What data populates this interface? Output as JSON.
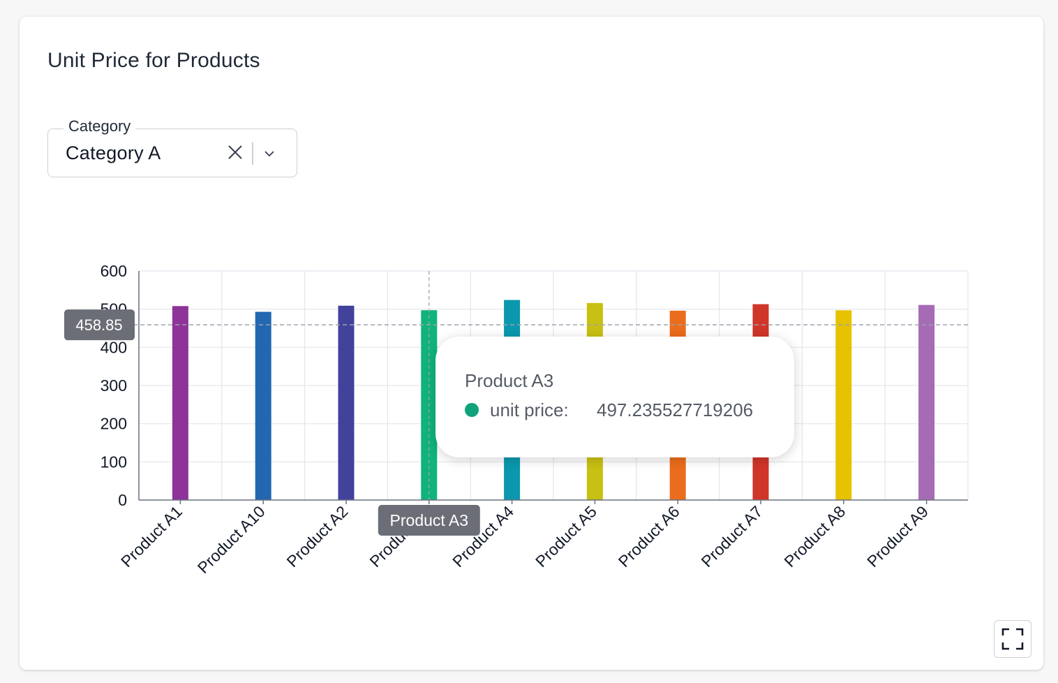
{
  "card": {
    "title": "Unit Price for Products"
  },
  "filter": {
    "label": "Category",
    "value": "Category A",
    "clear_icon": "close-icon",
    "open_icon": "chevron-down-icon"
  },
  "chart_data": {
    "type": "bar",
    "title": "",
    "xlabel": "",
    "ylabel": "",
    "ylim": [
      0,
      600
    ],
    "yticks": [
      0,
      100,
      200,
      300,
      400,
      500,
      600
    ],
    "grid": true,
    "categories": [
      "Product A1",
      "Product A10",
      "Product A2",
      "Product A3",
      "Product A4",
      "Product A5",
      "Product A6",
      "Product A7",
      "Product A8",
      "Product A9"
    ],
    "series": [
      {
        "name": "unit price",
        "values": [
          508,
          493,
          509,
          497.235527719206,
          524,
          516,
          496,
          513,
          497,
          511
        ]
      }
    ],
    "colors": [
      "#8e3399",
      "#2267b0",
      "#42429c",
      "#10b47a",
      "#0b97ad",
      "#c8c012",
      "#eb6c1c",
      "#d0352a",
      "#e6c200",
      "#a66bb5"
    ],
    "crosshair": {
      "category": "Product A3",
      "y_value_label": "458.85",
      "y_value": 458.85
    }
  },
  "tooltip": {
    "title": "Product A3",
    "series_label": "unit price:",
    "value": "497.235527719206",
    "dot_color": "#10a37a"
  },
  "fullscreen": {
    "icon": "fullscreen-icon"
  }
}
